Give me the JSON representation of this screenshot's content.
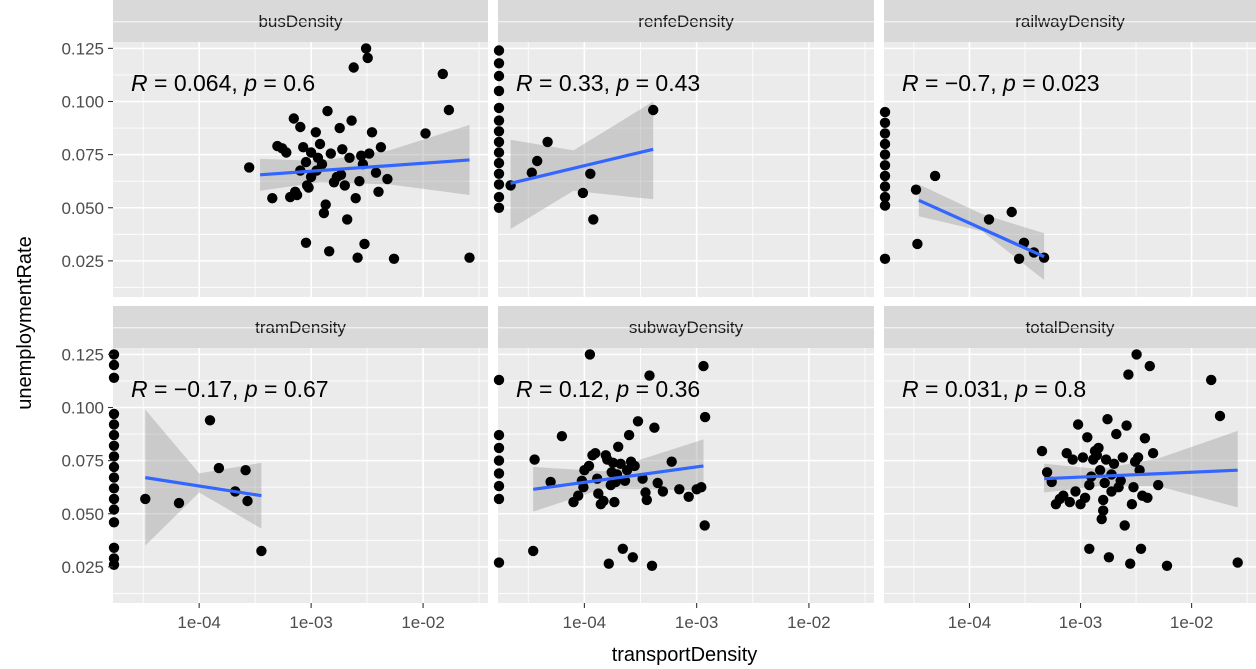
{
  "chart_data": {
    "type": "scatter",
    "xlabel": "transportDensity",
    "ylabel": "unemploymentRate",
    "x_scale": "log10",
    "x_tick_labels": [
      "1e-04",
      "1e-03",
      "1e-02"
    ],
    "y_tick_labels": [
      "0.025",
      "0.050",
      "0.075",
      "0.100",
      "0.125"
    ],
    "y_ticks": [
      0.025,
      0.05,
      0.075,
      0.1,
      0.125
    ],
    "x_ticks": [
      0.0001,
      0.001,
      0.01
    ],
    "xlim": [
      1.7e-05,
      0.038
    ],
    "ylim": [
      0.008,
      0.128
    ],
    "grid": true,
    "fit_line_color": "#3366ff",
    "confidence_band_color": "#999999",
    "point_color": "#000000",
    "panels": [
      {
        "label": "busDensity",
        "stat_R": "0.064",
        "stat_p": "0.6",
        "fit": {
          "x": [
            0.00035,
            0.026
          ],
          "y": [
            0.0655,
            0.0725
          ]
        },
        "band": [
          [
            0.00035,
            0.058,
            0.073
          ],
          [
            0.0012,
            0.062,
            0.072
          ],
          [
            0.005,
            0.061,
            0.077
          ],
          [
            0.026,
            0.056,
            0.089
          ]
        ],
        "points": [
          [
            0.00028,
            0.069
          ],
          [
            0.00045,
            0.0545
          ],
          [
            0.0005,
            0.079
          ],
          [
            0.00055,
            0.078
          ],
          [
            0.0006,
            0.076
          ],
          [
            0.00065,
            0.055
          ],
          [
            0.0007,
            0.092
          ],
          [
            0.00072,
            0.0575
          ],
          [
            0.00075,
            0.056
          ],
          [
            0.0008,
            0.088
          ],
          [
            0.00085,
            0.0785
          ],
          [
            0.0009,
            0.0335
          ],
          [
            0.00092,
            0.0605
          ],
          [
            0.00095,
            0.0595
          ],
          [
            0.001,
            0.076
          ],
          [
            0.001,
            0.0645
          ],
          [
            0.0011,
            0.0855
          ],
          [
            0.00112,
            0.0675
          ],
          [
            0.00115,
            0.0735
          ],
          [
            0.0012,
            0.08
          ],
          [
            0.00125,
            0.0705
          ],
          [
            0.0013,
            0.0475
          ],
          [
            0.00135,
            0.0515
          ],
          [
            0.0014,
            0.0955
          ],
          [
            0.00145,
            0.0295
          ],
          [
            0.0015,
            0.0755
          ],
          [
            0.0016,
            0.062
          ],
          [
            0.0017,
            0.0645
          ],
          [
            0.0018,
            0.0875
          ],
          [
            0.0019,
            0.0775
          ],
          [
            0.002,
            0.0605
          ],
          [
            0.0021,
            0.0445
          ],
          [
            0.0022,
            0.0735
          ],
          [
            0.0023,
            0.091
          ],
          [
            0.0024,
            0.116
          ],
          [
            0.0025,
            0.0545
          ],
          [
            0.0026,
            0.0265
          ],
          [
            0.0027,
            0.0625
          ],
          [
            0.0028,
            0.0745
          ],
          [
            0.0029,
            0.0705
          ],
          [
            0.003,
            0.033
          ],
          [
            0.0031,
            0.125
          ],
          [
            0.0032,
            0.1205
          ],
          [
            0.0033,
            0.0755
          ],
          [
            0.0035,
            0.0855
          ],
          [
            0.004,
            0.0575
          ],
          [
            0.0048,
            0.0635
          ],
          [
            0.0055,
            0.026
          ],
          [
            0.0042,
            0.0785
          ],
          [
            0.0038,
            0.0665
          ],
          [
            0.00185,
            0.0655
          ],
          [
            0.0008,
            0.0675
          ],
          [
            0.0009,
            0.0715
          ],
          [
            0.0105,
            0.085
          ],
          [
            0.015,
            0.113
          ],
          [
            0.017,
            0.096
          ],
          [
            0.026,
            0.0265
          ]
        ]
      },
      {
        "label": "renfeDensity",
        "stat_R": "0.33",
        "stat_p": "0.43",
        "fit": {
          "x": [
            2.2e-05,
            0.00041
          ],
          "y": [
            0.0615,
            0.0775
          ]
        },
        "band": [
          [
            2.2e-05,
            0.04,
            0.082
          ],
          [
            8e-05,
            0.058,
            0.077
          ],
          [
            0.00041,
            0.054,
            0.1
          ]
        ],
        "points": [
          [
            1.7e-05,
            0.124
          ],
          [
            1.7e-05,
            0.118
          ],
          [
            1.7e-05,
            0.112
          ],
          [
            1.7e-05,
            0.105
          ],
          [
            1.7e-05,
            0.097
          ],
          [
            1.7e-05,
            0.091
          ],
          [
            1.7e-05,
            0.086
          ],
          [
            1.7e-05,
            0.081
          ],
          [
            1.7e-05,
            0.076
          ],
          [
            1.7e-05,
            0.071
          ],
          [
            1.7e-05,
            0.066
          ],
          [
            1.7e-05,
            0.061
          ],
          [
            1.7e-05,
            0.055
          ],
          [
            1.7e-05,
            0.05
          ],
          [
            2.2e-05,
            0.0605
          ],
          [
            3.4e-05,
            0.0665
          ],
          [
            3.8e-05,
            0.072
          ],
          [
            4.7e-05,
            0.081
          ],
          [
            9.7e-05,
            0.057
          ],
          [
            0.000113,
            0.066
          ],
          [
            0.00012,
            0.0445
          ],
          [
            0.00041,
            0.096
          ]
        ]
      },
      {
        "label": "railwayDensity",
        "stat_R": "−0.7",
        "stat_p": "0.023",
        "fit": {
          "x": [
            3.5e-05,
            0.00047
          ],
          "y": [
            0.0535,
            0.027
          ]
        },
        "band": [
          [
            3.5e-05,
            0.046,
            0.061
          ],
          [
            0.00013,
            0.039,
            0.047
          ],
          [
            0.00047,
            0.016,
            0.038
          ]
        ],
        "points": [
          [
            1.7e-05,
            0.095
          ],
          [
            1.7e-05,
            0.09
          ],
          [
            1.7e-05,
            0.085
          ],
          [
            1.7e-05,
            0.08
          ],
          [
            1.7e-05,
            0.075
          ],
          [
            1.7e-05,
            0.07
          ],
          [
            1.7e-05,
            0.065
          ],
          [
            1.7e-05,
            0.06
          ],
          [
            1.7e-05,
            0.055
          ],
          [
            1.7e-05,
            0.051
          ],
          [
            1.7e-05,
            0.026
          ],
          [
            3.3e-05,
            0.0585
          ],
          [
            3.4e-05,
            0.033
          ],
          [
            4.9e-05,
            0.065
          ],
          [
            0.00015,
            0.0445
          ],
          [
            0.00024,
            0.048
          ],
          [
            0.00028,
            0.026
          ],
          [
            0.00031,
            0.0335
          ],
          [
            0.00038,
            0.029
          ],
          [
            0.00047,
            0.0265
          ]
        ]
      },
      {
        "label": "tramDensity",
        "stat_R": "−0.17",
        "stat_p": "0.67",
        "fit": {
          "x": [
            3.3e-05,
            0.00036
          ],
          "y": [
            0.067,
            0.0585
          ]
        },
        "band": [
          [
            3.3e-05,
            0.035,
            0.099
          ],
          [
            0.0001,
            0.06,
            0.069
          ],
          [
            0.00036,
            0.043,
            0.074
          ]
        ],
        "points": [
          [
            1.7e-05,
            0.125
          ],
          [
            1.7e-05,
            0.12
          ],
          [
            1.7e-05,
            0.114
          ],
          [
            1.7e-05,
            0.097
          ],
          [
            1.7e-05,
            0.092
          ],
          [
            1.7e-05,
            0.087
          ],
          [
            1.7e-05,
            0.082
          ],
          [
            1.7e-05,
            0.077
          ],
          [
            1.7e-05,
            0.072
          ],
          [
            1.7e-05,
            0.067
          ],
          [
            1.7e-05,
            0.062
          ],
          [
            1.7e-05,
            0.057
          ],
          [
            1.7e-05,
            0.052
          ],
          [
            1.7e-05,
            0.046
          ],
          [
            1.7e-05,
            0.034
          ],
          [
            1.7e-05,
            0.029
          ],
          [
            1.7e-05,
            0.026
          ],
          [
            3.3e-05,
            0.057
          ],
          [
            6.6e-05,
            0.055
          ],
          [
            0.000125,
            0.094
          ],
          [
            0.00015,
            0.0715
          ],
          [
            0.00021,
            0.0605
          ],
          [
            0.00026,
            0.0705
          ],
          [
            0.00027,
            0.056
          ],
          [
            0.00036,
            0.0325
          ]
        ]
      },
      {
        "label": "subwayDensity",
        "stat_R": "0.12",
        "stat_p": "0.36",
        "fit": {
          "x": [
            3.5e-05,
            0.00115
          ],
          "y": [
            0.0615,
            0.0725
          ]
        },
        "band": [
          [
            3.5e-05,
            0.051,
            0.072
          ],
          [
            0.00015,
            0.062,
            0.07
          ],
          [
            0.00115,
            0.061,
            0.085
          ]
        ],
        "points": [
          [
            1.7e-05,
            0.113
          ],
          [
            1.7e-05,
            0.087
          ],
          [
            1.7e-05,
            0.081
          ],
          [
            1.7e-05,
            0.075
          ],
          [
            1.7e-05,
            0.069
          ],
          [
            1.7e-05,
            0.063
          ],
          [
            1.7e-05,
            0.057
          ],
          [
            1.7e-05,
            0.027
          ],
          [
            3.5e-05,
            0.0325
          ],
          [
            3.6e-05,
            0.0755
          ],
          [
            5e-05,
            0.065
          ],
          [
            6.3e-05,
            0.0865
          ],
          [
            8e-05,
            0.0555
          ],
          [
            8.8e-05,
            0.0585
          ],
          [
            9.5e-05,
            0.0655
          ],
          [
            9.8e-05,
            0.0625
          ],
          [
            0.0001,
            0.0705
          ],
          [
            0.00011,
            0.0725
          ],
          [
            0.000118,
            0.0775
          ],
          [
            0.000125,
            0.0785
          ],
          [
            0.00013,
            0.0665
          ],
          [
            0.000133,
            0.0595
          ],
          [
            0.00014,
            0.0545
          ],
          [
            0.000148,
            0.056
          ],
          [
            0.000155,
            0.0775
          ],
          [
            0.00016,
            0.0755
          ],
          [
            0.000165,
            0.0265
          ],
          [
            0.000172,
            0.0635
          ],
          [
            0.00018,
            0.074
          ],
          [
            0.000185,
            0.0555
          ],
          [
            0.00019,
            0.065
          ],
          [
            0.000195,
            0.0685
          ],
          [
            0.0002,
            0.0815
          ],
          [
            0.00021,
            0.0735
          ],
          [
            0.00022,
            0.0335
          ],
          [
            0.00023,
            0.0655
          ],
          [
            0.00024,
            0.0705
          ],
          [
            0.00025,
            0.087
          ],
          [
            0.00026,
            0.0745
          ],
          [
            0.00027,
            0.0295
          ],
          [
            0.00028,
            0.0725
          ],
          [
            0.0003,
            0.0935
          ],
          [
            0.00033,
            0.0665
          ],
          [
            0.00035,
            0.06
          ],
          [
            0.00036,
            0.0565
          ],
          [
            0.00038,
            0.115
          ],
          [
            0.0004,
            0.0255
          ],
          [
            0.00042,
            0.0905
          ],
          [
            0.00045,
            0.0645
          ],
          [
            0.0005,
            0.0605
          ],
          [
            0.0006,
            0.0745
          ],
          [
            0.0007,
            0.0615
          ],
          [
            0.00085,
            0.058
          ],
          [
            0.001,
            0.0615
          ],
          [
            0.0011,
            0.0625
          ],
          [
            0.00115,
            0.1195
          ],
          [
            0.00118,
            0.0445
          ],
          [
            0.00119,
            0.0955
          ],
          [
            0.000112,
            0.125
          ],
          [
            0.000175,
            0.0695
          ]
        ]
      },
      {
        "label": "totalDensity",
        "stat_R": "0.031",
        "stat_p": "0.8",
        "fit": {
          "x": [
            0.00047,
            0.026
          ],
          "y": [
            0.0665,
            0.0705
          ]
        },
        "band": [
          [
            0.00047,
            0.06,
            0.0735
          ],
          [
            0.0015,
            0.063,
            0.071
          ],
          [
            0.005,
            0.063,
            0.076
          ],
          [
            0.026,
            0.053,
            0.089
          ]
        ],
        "points": [
          [
            0.00045,
            0.0795
          ],
          [
            0.0005,
            0.0695
          ],
          [
            0.00055,
            0.065
          ],
          [
            0.0006,
            0.0545
          ],
          [
            0.00065,
            0.057
          ],
          [
            0.0007,
            0.0585
          ],
          [
            0.00075,
            0.0785
          ],
          [
            0.0008,
            0.0555
          ],
          [
            0.00085,
            0.0755
          ],
          [
            0.0009,
            0.0605
          ],
          [
            0.00095,
            0.092
          ],
          [
            0.001,
            0.0545
          ],
          [
            0.00105,
            0.0765
          ],
          [
            0.0011,
            0.0575
          ],
          [
            0.00115,
            0.086
          ],
          [
            0.0012,
            0.0335
          ],
          [
            0.00125,
            0.0675
          ],
          [
            0.0013,
            0.0755
          ],
          [
            0.00135,
            0.0795
          ],
          [
            0.0014,
            0.0775
          ],
          [
            0.00145,
            0.081
          ],
          [
            0.0015,
            0.0705
          ],
          [
            0.00155,
            0.0475
          ],
          [
            0.0016,
            0.0515
          ],
          [
            0.00165,
            0.0645
          ],
          [
            0.0017,
            0.0755
          ],
          [
            0.00175,
            0.0945
          ],
          [
            0.0018,
            0.0295
          ],
          [
            0.0019,
            0.0605
          ],
          [
            0.002,
            0.0735
          ],
          [
            0.0021,
            0.0875
          ],
          [
            0.0022,
            0.0625
          ],
          [
            0.0023,
            0.0655
          ],
          [
            0.0024,
            0.0765
          ],
          [
            0.0025,
            0.0445
          ],
          [
            0.0026,
            0.0915
          ],
          [
            0.0027,
            0.1155
          ],
          [
            0.0028,
            0.0265
          ],
          [
            0.0029,
            0.0545
          ],
          [
            0.003,
            0.0625
          ],
          [
            0.0031,
            0.0745
          ],
          [
            0.0032,
            0.125
          ],
          [
            0.0033,
            0.0765
          ],
          [
            0.0034,
            0.0705
          ],
          [
            0.0035,
            0.0335
          ],
          [
            0.0036,
            0.0585
          ],
          [
            0.0038,
            0.0855
          ],
          [
            0.004,
            0.0575
          ],
          [
            0.0042,
            0.1195
          ],
          [
            0.0045,
            0.0785
          ],
          [
            0.005,
            0.0635
          ],
          [
            0.006,
            0.0255
          ],
          [
            0.015,
            0.113
          ],
          [
            0.018,
            0.096
          ],
          [
            0.026,
            0.027
          ],
          [
            0.0016,
            0.0565
          ],
          [
            0.0012,
            0.0635
          ],
          [
            0.0019,
            0.0685
          ]
        ]
      }
    ]
  }
}
